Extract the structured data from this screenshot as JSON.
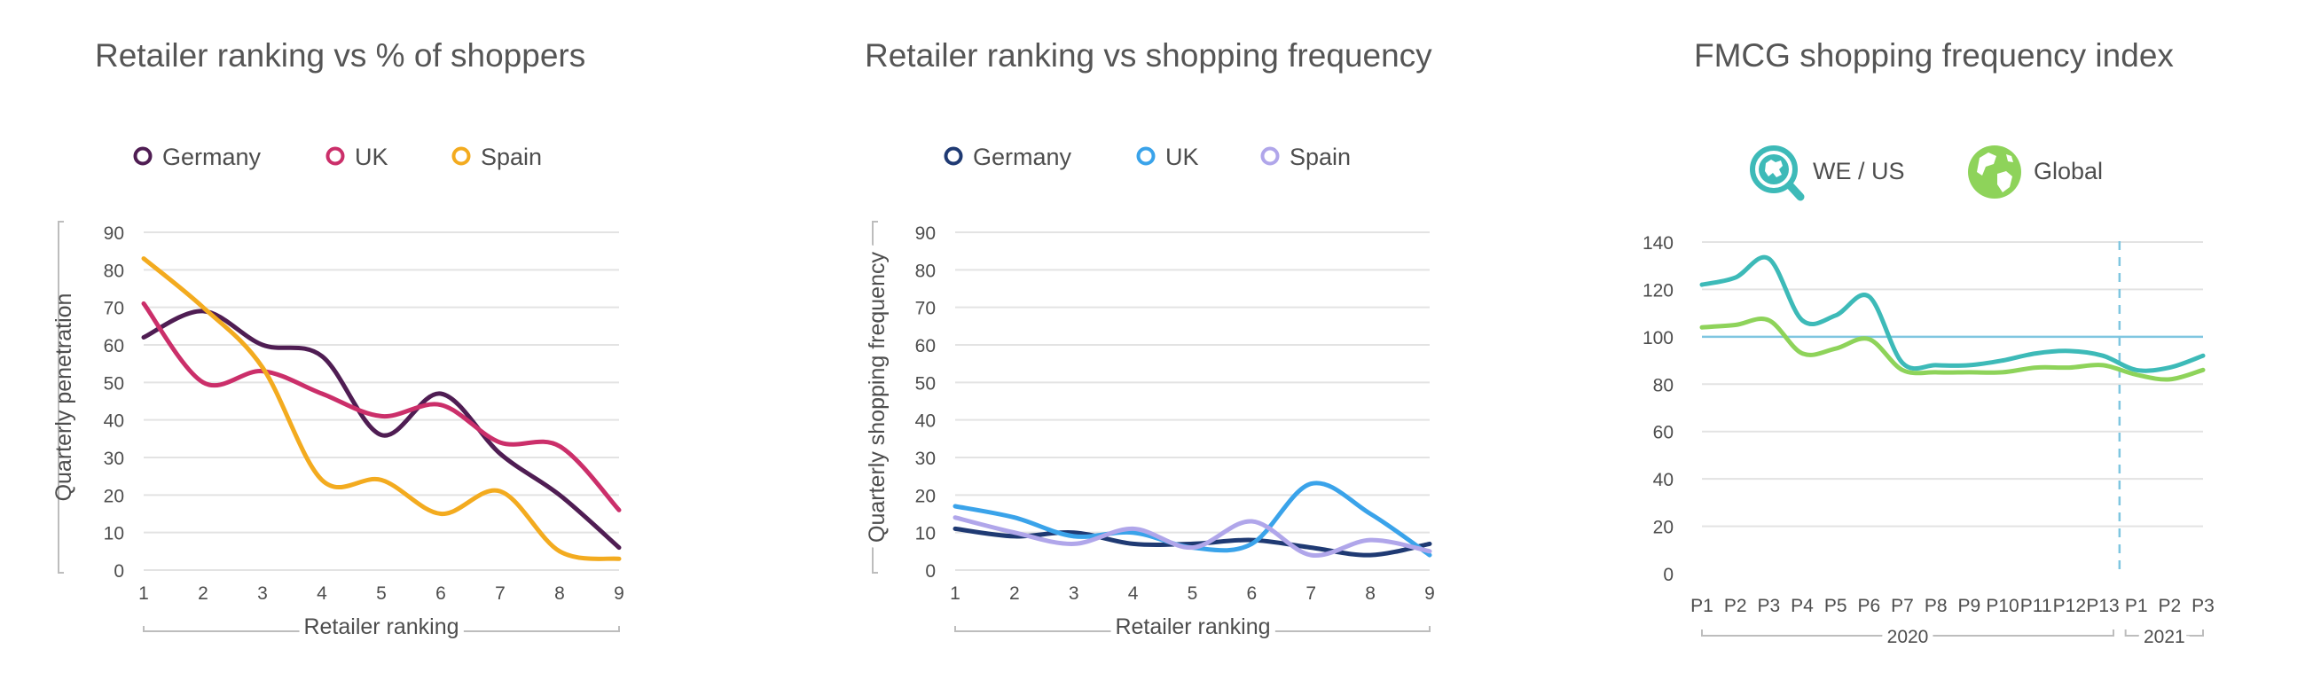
{
  "colors": {
    "chart1": {
      "Germany": "#4f1d53",
      "UK": "#cb2f6a",
      "Spain": "#f3ab1f"
    },
    "chart2": {
      "Germany": "#1f3a73",
      "UK": "#3aa3ea",
      "Spain": "#b0a6ea"
    },
    "chart3": {
      "WE / US": "#3dbab8",
      "Global": "#8ed35a"
    },
    "grid": "#e3e3e3",
    "axis_bracket": "#bdbdbd",
    "reference_line": "#7fc6e0"
  },
  "chart_data": [
    {
      "type": "line",
      "title": "Retailer ranking vs % of shoppers",
      "xlabel": "Retailer ranking",
      "ylabel": "Quarterly penetration",
      "x": [
        1,
        2,
        3,
        4,
        5,
        6,
        7,
        8,
        9
      ],
      "xlim": [
        1,
        9
      ],
      "ylim": [
        0,
        90
      ],
      "yticks": [
        0,
        10,
        20,
        30,
        40,
        50,
        60,
        70,
        80,
        90
      ],
      "grid": true,
      "legend_position": "top",
      "series": [
        {
          "name": "Germany",
          "values": [
            62,
            69,
            60,
            57,
            36,
            47,
            31,
            20,
            6
          ]
        },
        {
          "name": "UK",
          "values": [
            71,
            50,
            53,
            47,
            41,
            44,
            34,
            33,
            16
          ]
        },
        {
          "name": "Spain",
          "values": [
            83,
            70,
            54,
            24,
            24,
            15,
            21,
            5,
            3
          ]
        }
      ]
    },
    {
      "type": "line",
      "title": "Retailer ranking vs shopping frequency",
      "xlabel": "Retailer ranking",
      "ylabel": "Quarterly shopping frequency",
      "x": [
        1,
        2,
        3,
        4,
        5,
        6,
        7,
        8,
        9
      ],
      "xlim": [
        1,
        9
      ],
      "ylim": [
        0,
        90
      ],
      "yticks": [
        0,
        10,
        20,
        30,
        40,
        50,
        60,
        70,
        80,
        90
      ],
      "grid": true,
      "legend_position": "top",
      "series": [
        {
          "name": "Germany",
          "values": [
            11,
            9,
            10,
            7,
            7,
            8,
            6,
            4,
            7
          ]
        },
        {
          "name": "UK",
          "values": [
            17,
            14,
            9,
            10,
            6,
            7,
            23,
            15,
            4
          ]
        },
        {
          "name": "Spain",
          "values": [
            14,
            10,
            7,
            11,
            6,
            13,
            4,
            8,
            5
          ]
        }
      ]
    },
    {
      "type": "line",
      "title": "FMCG shopping frequency index",
      "categories": [
        "P1",
        "P2",
        "P3",
        "P4",
        "P5",
        "P6",
        "P7",
        "P8",
        "P9",
        "P10",
        "P11",
        "P12",
        "P13",
        "P1",
        "P2",
        "P3"
      ],
      "period_groups": [
        {
          "label": "2020",
          "from": 0,
          "to": 12
        },
        {
          "label": "2021",
          "from": 13,
          "to": 15
        }
      ],
      "ylim": [
        0,
        140
      ],
      "yticks": [
        0,
        20,
        40,
        60,
        80,
        100,
        120,
        140
      ],
      "reference_line": 100,
      "divider_after_index": 12,
      "grid": true,
      "legend_position": "top",
      "series": [
        {
          "name": "WE / US",
          "icon": "magnifier-europe-icon",
          "values": [
            122,
            125,
            133,
            107,
            109,
            117,
            89,
            88,
            88,
            90,
            93,
            94,
            92,
            86,
            87,
            92
          ]
        },
        {
          "name": "Global",
          "icon": "globe-icon",
          "values": [
            104,
            105,
            107,
            93,
            95,
            99,
            86,
            85,
            85,
            85,
            87,
            87,
            88,
            84,
            82,
            86
          ]
        }
      ]
    }
  ]
}
